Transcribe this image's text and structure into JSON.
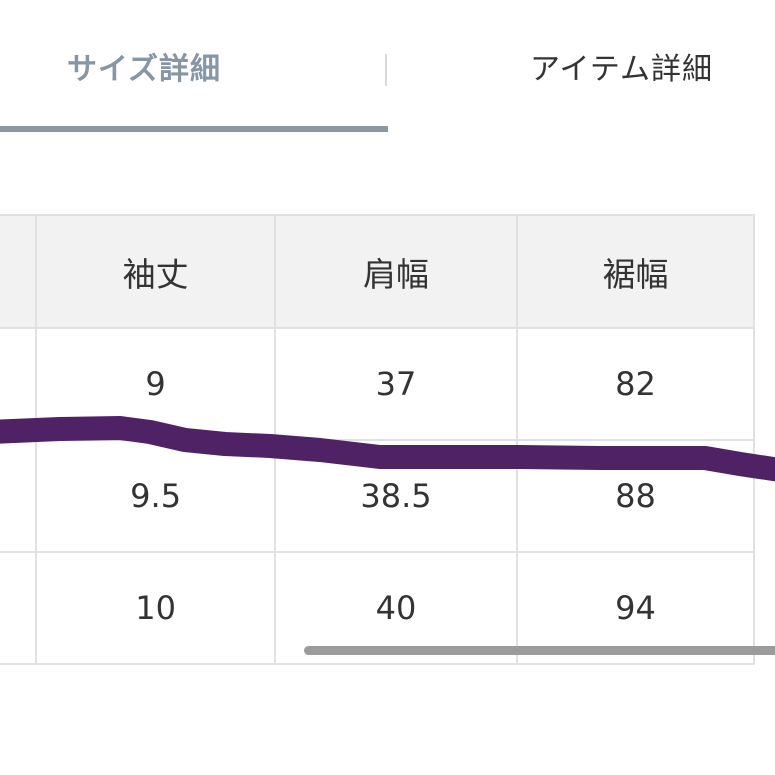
{
  "tabs": [
    {
      "label": "サイズ詳細",
      "active": true
    },
    {
      "label": "アイテム詳細",
      "active": false
    }
  ],
  "table": {
    "headers": [
      "",
      "袖丈",
      "肩幅",
      "裾幅"
    ],
    "rows": [
      [
        "",
        "9",
        "37",
        "82"
      ],
      [
        "",
        "9.5",
        "38.5",
        "88"
      ],
      [
        "",
        "10",
        "40",
        "94"
      ]
    ]
  },
  "colors": {
    "active_tab_text": "#8596a7",
    "active_tab_underline": "#8b97a3",
    "marker_stroke": "#4f2266",
    "header_background": "#f2f2f2"
  }
}
